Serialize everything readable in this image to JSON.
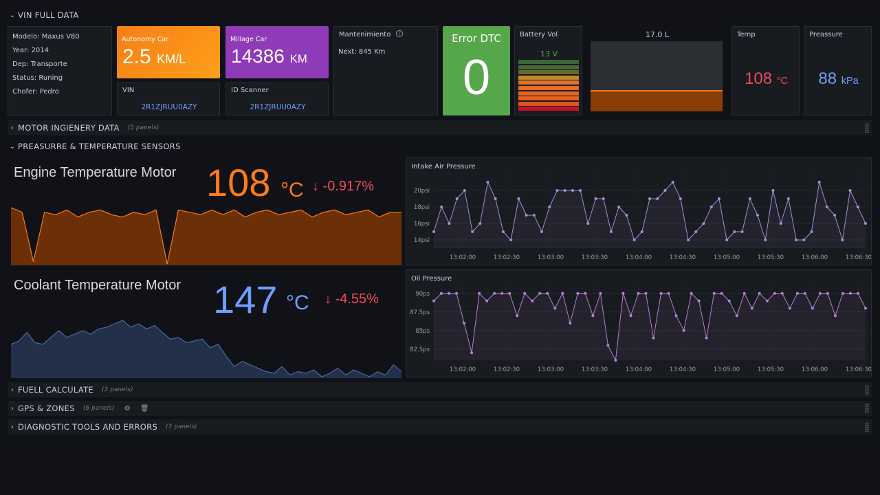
{
  "rows": {
    "vin": "VIN FULL DATA",
    "motor": "MOTOR INGIENERY DATA",
    "motor_count": "(5 panels)",
    "sensors": "PREASURRE & TEMPERATURE SENSORS",
    "fuel": "FUELL CALCULATE",
    "fuel_count": "(3 panels)",
    "gps": "GPS & ZONES",
    "gps_count": "(6 panels)",
    "diag": "DIAGNOSTIC TOOLS AND ERRORS",
    "diag_count": "(3 panels)"
  },
  "info": {
    "modelo": "Modelo: Maxus V80",
    "year": "Year: 2014",
    "dep": "Dep: Transporte",
    "status": "Status: Runing",
    "chofer": "Chofer: Pedro"
  },
  "autonomy": {
    "title": "Autonomy Car",
    "value": "2.5",
    "unit": "KM/L"
  },
  "millage": {
    "title": "Millage Car",
    "value": "14386",
    "unit": "KM"
  },
  "vin_panel": {
    "title": "VIN",
    "value": "2R1ZJRUU0AZY"
  },
  "scanner": {
    "title": "ID Scanner",
    "value": "2R1ZJRUU0AZY"
  },
  "mant": {
    "title": "Mantenimiento",
    "next": "Next: 845 Km"
  },
  "dtc": {
    "title": "Error DTC",
    "value": "0"
  },
  "battery": {
    "title": "Battery Vol",
    "value": "13 V",
    "level": 0.65
  },
  "tank": {
    "title": "17.0 L",
    "fill": 0.3
  },
  "temp": {
    "title": "Temp",
    "value": "108",
    "unit": "°C"
  },
  "pressure": {
    "title": "Preassure",
    "value": "88",
    "unit": "kPa"
  },
  "engine": {
    "title": "Engine Temperature Motor",
    "value": "108",
    "unit": "°C",
    "delta": "-0.917%"
  },
  "coolant": {
    "title": "Coolant Temperature Motor",
    "value": "147",
    "unit": "°C",
    "delta": "-4.55%"
  },
  "colors": {
    "orange": "#ff7a1a",
    "purple": "#9b44c1",
    "green": "#56a64b",
    "red": "#f2495c",
    "blue": "#6e9fff",
    "lavender": "#a48fd8"
  },
  "chart_data": [
    {
      "type": "line",
      "title": "Intake Air Pressure",
      "xticks": [
        "13:02:00",
        "13:02:30",
        "13:03:00",
        "13:03:30",
        "13:04:00",
        "13:04:30",
        "13:05:00",
        "13:05:30",
        "13:06:00",
        "13:06:30"
      ],
      "yticks": [
        "14psi",
        "16psi",
        "18psi",
        "20psi"
      ],
      "ylim": [
        13,
        22
      ],
      "values": [
        15,
        18,
        16,
        19,
        20,
        15,
        16,
        21,
        19,
        15,
        14,
        19,
        17,
        17,
        15,
        18,
        20,
        20,
        20,
        20,
        16,
        19,
        19,
        15,
        18,
        17,
        14,
        15,
        19,
        19,
        20,
        21,
        19,
        14,
        15,
        16,
        18,
        19,
        14,
        15,
        15,
        19,
        17,
        14,
        20,
        16,
        19,
        14,
        14,
        15,
        21,
        18,
        17,
        14,
        20,
        18,
        16
      ]
    },
    {
      "type": "line",
      "title": "Oil Pressure",
      "xticks": [
        "13:02:00",
        "13:02:30",
        "13:03:00",
        "13:03:30",
        "13:04:00",
        "13:04:30",
        "13:05:00",
        "13:05:30",
        "13:06:00",
        "13:06:30"
      ],
      "yticks": [
        "82.5ps",
        "85ps",
        "87.5ps",
        "90ps"
      ],
      "ylim": [
        81,
        91
      ],
      "values": [
        89,
        90,
        90,
        90,
        86,
        82,
        90,
        89,
        90,
        90,
        90,
        87,
        90,
        89,
        90,
        90,
        88,
        90,
        86,
        90,
        90,
        87,
        90,
        83,
        81,
        90,
        87,
        90,
        90,
        84,
        90,
        90,
        87,
        85,
        90,
        89,
        84,
        90,
        90,
        89,
        87,
        90,
        88,
        90,
        89,
        90,
        90,
        88,
        90,
        90,
        88,
        90,
        90,
        87,
        90,
        90,
        90,
        88
      ]
    },
    {
      "type": "area",
      "title": "Engine Temperature Motor",
      "values": [
        100,
        98,
        77,
        98,
        97,
        99,
        96,
        98,
        99,
        97,
        96,
        98,
        97,
        99,
        76,
        99,
        98,
        97,
        99,
        97,
        99,
        96,
        98,
        99,
        97,
        98,
        99,
        96,
        98,
        99,
        97,
        98,
        99,
        96,
        98,
        98
      ]
    },
    {
      "type": "area",
      "title": "Coolant Temperature Motor",
      "values": [
        60,
        62,
        67,
        61,
        60,
        64,
        68,
        64,
        66,
        68,
        66,
        69,
        70,
        72,
        74,
        70,
        72,
        69,
        71,
        67,
        63,
        64,
        61,
        62,
        63,
        58,
        60,
        53,
        47,
        50,
        48,
        46,
        44,
        43,
        47,
        42,
        44,
        43,
        45,
        41,
        43,
        46,
        42,
        45,
        43,
        41,
        44,
        42,
        48,
        44
      ]
    }
  ]
}
